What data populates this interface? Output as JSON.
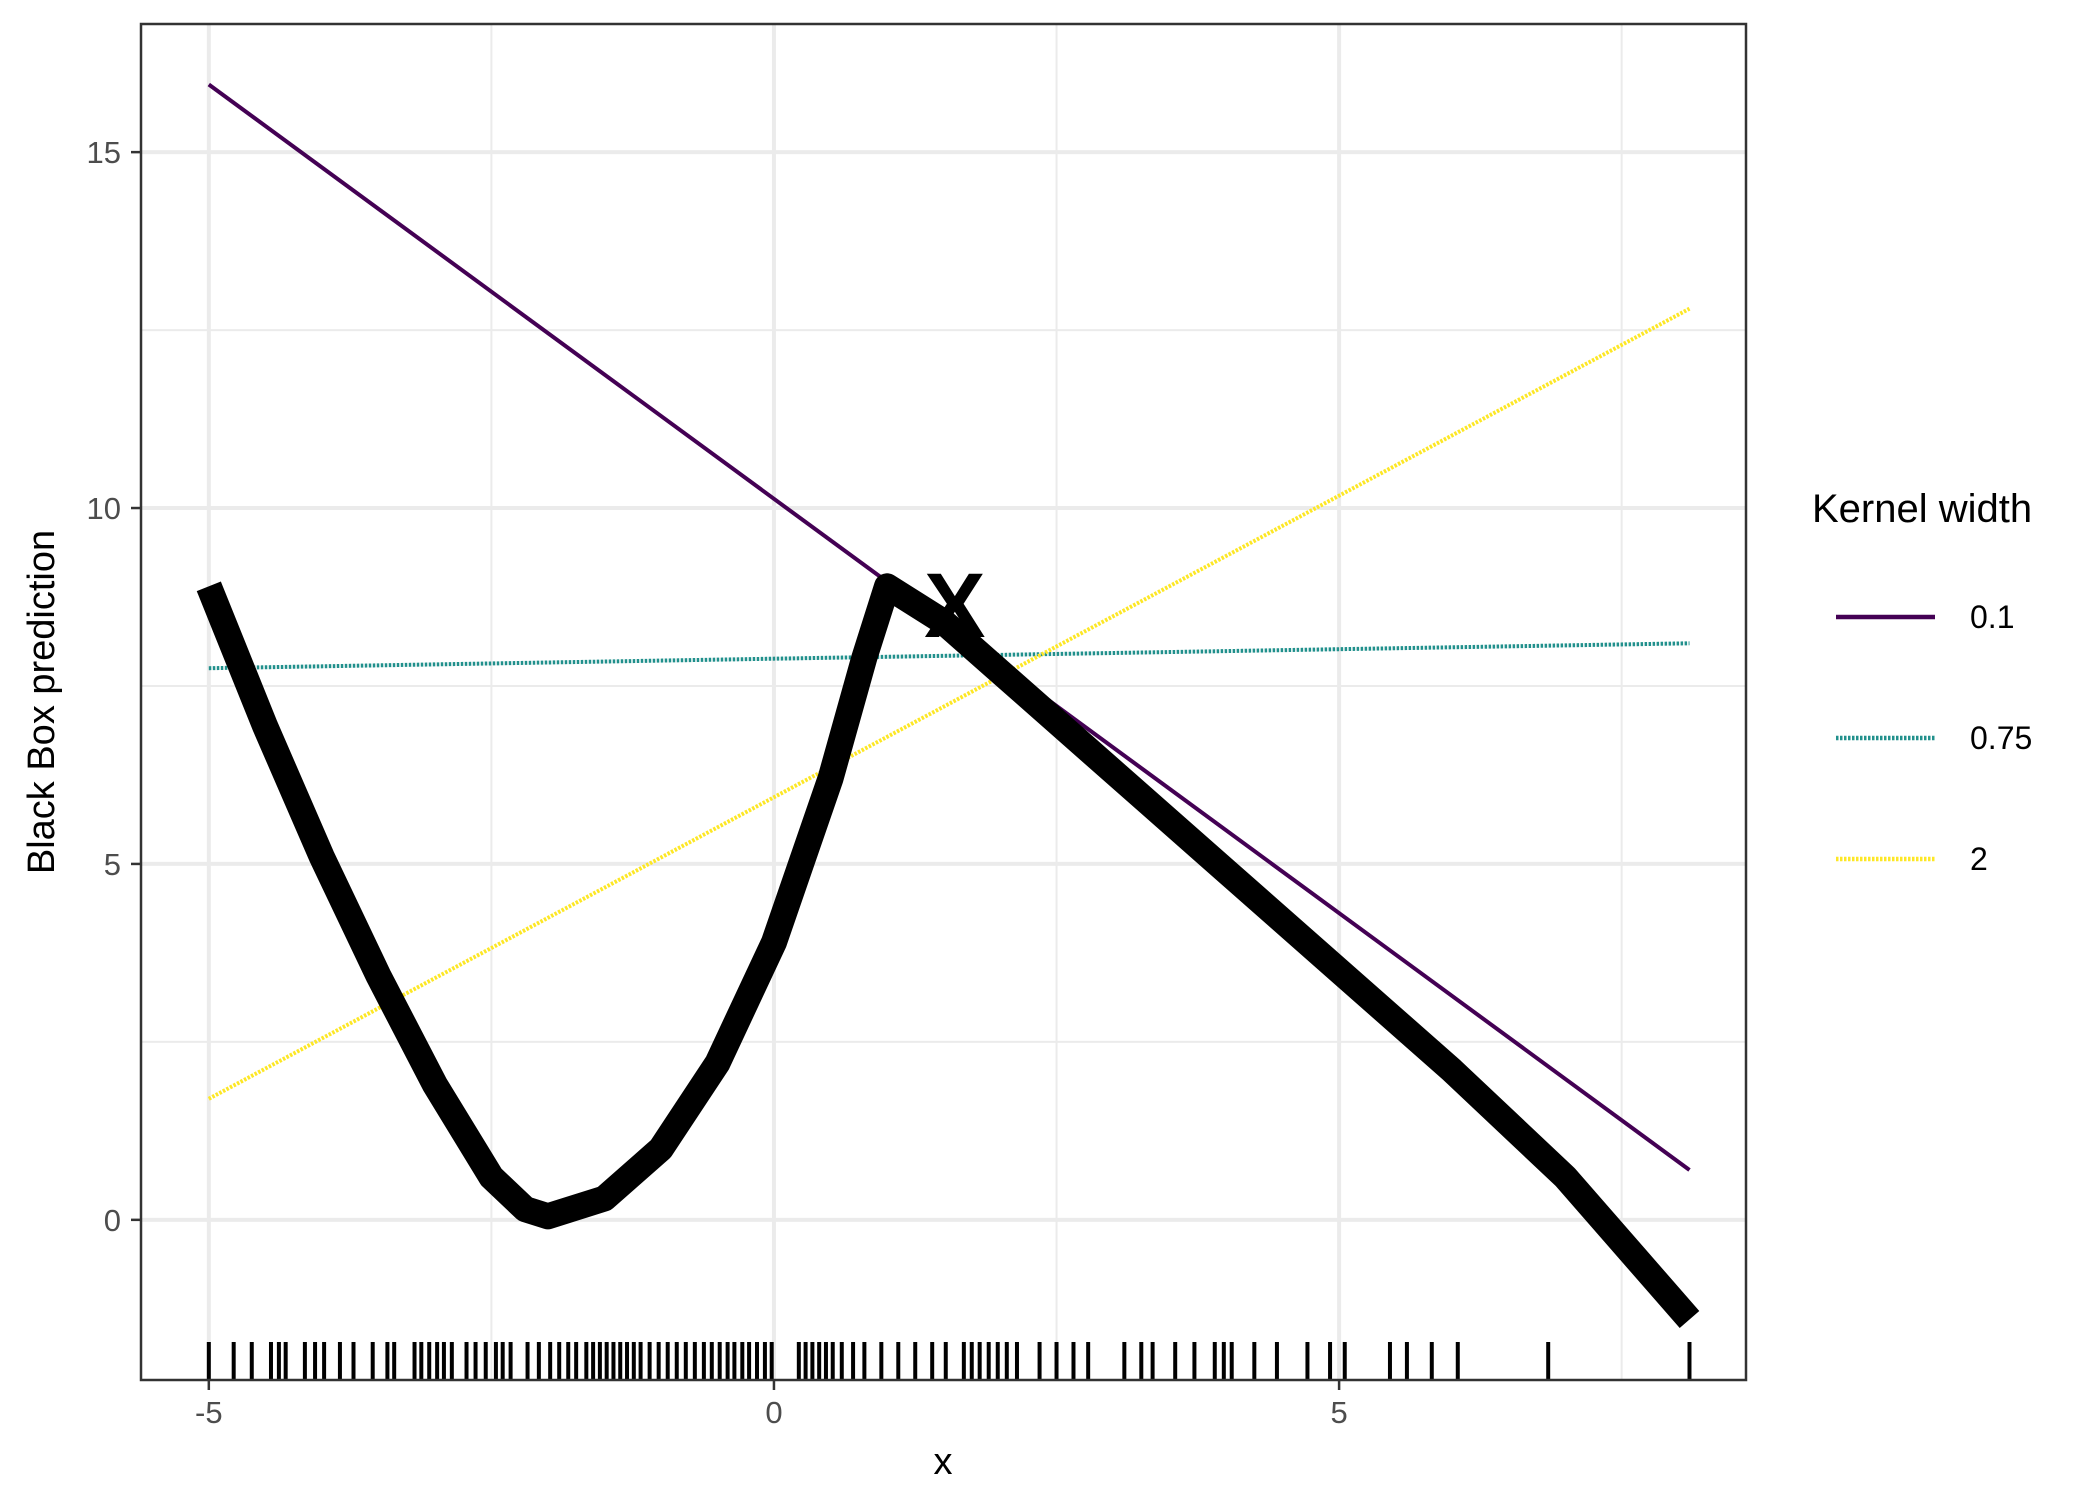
{
  "chart_data": {
    "type": "line",
    "xlabel": "x",
    "ylabel": "Black Box prediction",
    "xlim": [
      -5.6,
      8.6
    ],
    "ylim": [
      -2.25,
      16.8
    ],
    "x_ticks": [
      -5,
      0,
      5
    ],
    "x_tick_labels": [
      "-5",
      "0",
      "5"
    ],
    "y_ticks": [
      0,
      5,
      10,
      15
    ],
    "y_tick_labels": [
      "0",
      "5",
      "10",
      "15"
    ],
    "grid": true,
    "legend": {
      "title": "Kernel width",
      "placement": "right",
      "entries": [
        {
          "label": "0.1",
          "color": "#440154",
          "linestyle": "solid"
        },
        {
          "label": "0.75",
          "color": "#21908C",
          "linestyle": "dotted"
        },
        {
          "label": "2",
          "color": "#FDE725",
          "linestyle": "dotted"
        }
      ]
    },
    "black_box_curve": {
      "color": "#000000",
      "x": [
        -5,
        -4.5,
        -4,
        -3.5,
        -3,
        -2.5,
        -2.2,
        -2,
        -1.5,
        -1,
        -0.5,
        0,
        0.5,
        0.8,
        1,
        1.5,
        2,
        3,
        4,
        5,
        6,
        7,
        8.1
      ],
      "y": [
        8.9,
        6.93,
        5.1,
        3.43,
        1.9,
        0.6,
        0.15,
        0.05,
        0.3,
        1.0,
        2.2,
        3.9,
        6.2,
        7.9,
        8.9,
        8.4,
        7.7,
        6.3,
        4.9,
        3.5,
        2.1,
        0.6,
        -1.4
      ]
    },
    "series": [
      {
        "name": "0.1",
        "x": [
          -5,
          8.1
        ],
        "y": [
          15.95,
          0.7
        ],
        "color": "#440154",
        "linestyle": "solid"
      },
      {
        "name": "0.75",
        "x": [
          -5,
          8.1
        ],
        "y": [
          7.75,
          8.1
        ],
        "color": "#21908C",
        "linestyle": "dotted"
      },
      {
        "name": "2",
        "x": [
          -5,
          8.1
        ],
        "y": [
          1.7,
          12.8
        ],
        "color": "#FDE725",
        "linestyle": "dotted"
      }
    ],
    "annotations": [
      {
        "text": "X",
        "x": 1.6,
        "y": 8.65
      }
    ],
    "rug_x": [
      -5.0,
      -4.78,
      -4.62,
      -4.45,
      -4.38,
      -4.32,
      -4.15,
      -4.06,
      -3.98,
      -3.84,
      -3.72,
      -3.55,
      -3.42,
      -3.36,
      -3.18,
      -3.12,
      -3.05,
      -2.98,
      -2.92,
      -2.85,
      -2.72,
      -2.64,
      -2.55,
      -2.46,
      -2.4,
      -2.33,
      -2.18,
      -2.08,
      -1.98,
      -1.9,
      -1.82,
      -1.75,
      -1.66,
      -1.6,
      -1.54,
      -1.48,
      -1.42,
      -1.36,
      -1.3,
      -1.24,
      -1.18,
      -1.1,
      -1.02,
      -0.94,
      -0.86,
      -0.78,
      -0.7,
      -0.62,
      -0.55,
      -0.48,
      -0.41,
      -0.35,
      -0.28,
      -0.22,
      -0.15,
      -0.08,
      -0.02,
      0.22,
      0.28,
      0.34,
      0.4,
      0.46,
      0.52,
      0.6,
      0.7,
      0.8,
      0.95,
      1.1,
      1.25,
      1.4,
      1.52,
      1.68,
      1.75,
      1.82,
      1.9,
      1.98,
      2.06,
      2.15,
      2.35,
      2.5,
      2.65,
      2.78,
      3.1,
      3.25,
      3.35,
      3.55,
      3.72,
      3.9,
      3.98,
      4.05,
      4.25,
      4.45,
      4.72,
      4.92,
      5.05,
      5.45,
      5.6,
      5.82,
      6.05,
      6.85,
      8.1
    ]
  }
}
